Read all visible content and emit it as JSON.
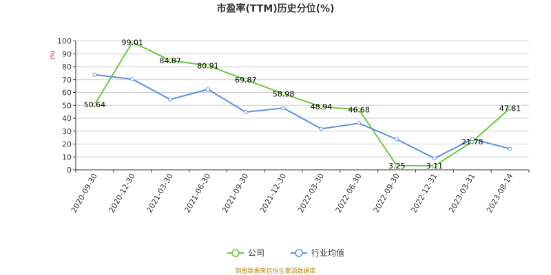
{
  "colors": {
    "company": "#66cc33",
    "industry": "#5b8ee6",
    "grid": "#cccccc",
    "axis": "#333333",
    "source": "#c08a00",
    "unit": "#cc0000"
  },
  "source_note": "制图数据来自恒生聚源数据库",
  "chart_data": {
    "type": "line",
    "title": "市盈率(TTM)历史分位(%)",
    "ylabel": "(%)",
    "xlabel": "",
    "ylim": [
      0,
      100
    ],
    "y_ticks": [
      0,
      10,
      20,
      30,
      40,
      50,
      60,
      70,
      80,
      90,
      100
    ],
    "grid": true,
    "legend_position": "bottom-center",
    "categories": [
      "2020-09-30",
      "2020-12-30",
      "2021-03-30",
      "2021-06-30",
      "2021-09-30",
      "2021-12-30",
      "2022-03-30",
      "2022-06-30",
      "2022-09-30",
      "2022-12-31",
      "2023-03-31",
      "2023-08-14"
    ],
    "series": [
      {
        "name": "公司",
        "color": "#66cc33",
        "values": [
          50.64,
          99.01,
          84.87,
          80.91,
          69.87,
          58.98,
          48.94,
          46.68,
          3.25,
          3.11,
          21.78,
          47.81
        ],
        "labels": [
          "50.64",
          "99.01",
          "84.87",
          "80.91",
          "69.87",
          "58.98",
          "48.94",
          "46.68",
          "3.25",
          "3.11",
          "21.78",
          "47.81"
        ]
      },
      {
        "name": "行业均值",
        "color": "#5b8ee6",
        "values": [
          73.8,
          70.3,
          54.6,
          62.4,
          44.8,
          47.9,
          31.8,
          36.1,
          23.6,
          8.9,
          23.9,
          16.3
        ]
      }
    ]
  }
}
